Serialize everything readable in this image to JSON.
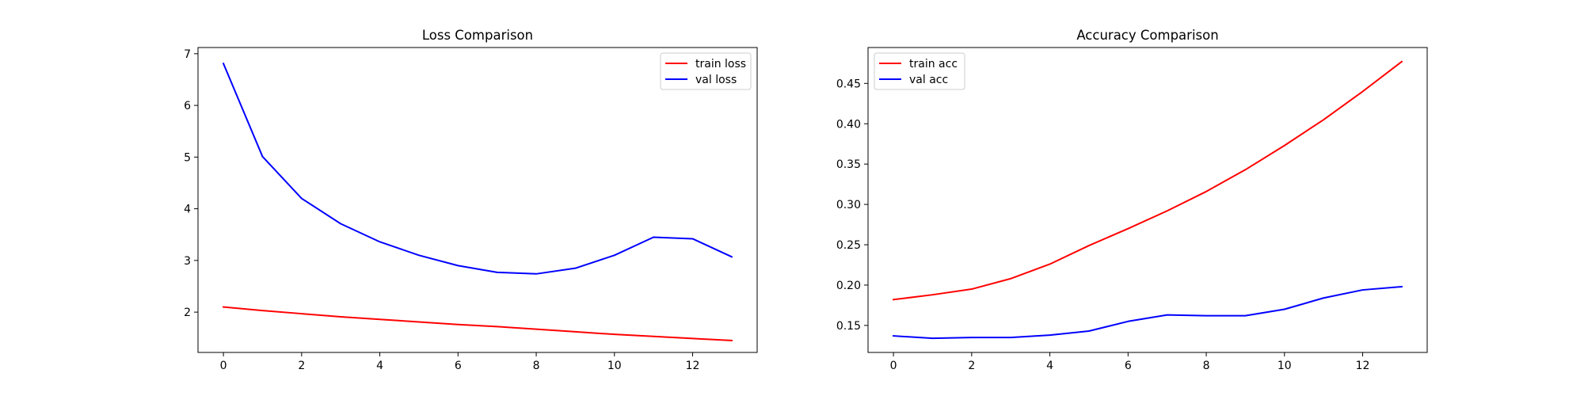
{
  "chart_data": [
    {
      "type": "line",
      "title": "Loss Comparison",
      "xlabel": "",
      "ylabel": "",
      "x": [
        0,
        1,
        2,
        3,
        4,
        5,
        6,
        7,
        8,
        9,
        10,
        11,
        12,
        13
      ],
      "xlim": [
        -0.65,
        13.65
      ],
      "ylim": [
        1.22,
        7.12
      ],
      "xticks": [
        0,
        2,
        4,
        6,
        8,
        10,
        12
      ],
      "yticks": [
        2,
        3,
        4,
        5,
        6,
        7
      ],
      "ytick_decimals": 0,
      "grid": false,
      "legend": "top-right",
      "series": [
        {
          "name": "train loss",
          "color": "#ff0000",
          "values": [
            2.1,
            2.03,
            1.97,
            1.91,
            1.86,
            1.81,
            1.76,
            1.72,
            1.67,
            1.62,
            1.57,
            1.53,
            1.49,
            1.45
          ]
        },
        {
          "name": "val loss",
          "color": "#0000ff",
          "values": [
            6.81,
            5.01,
            4.2,
            3.71,
            3.36,
            3.1,
            2.9,
            2.77,
            2.74,
            2.85,
            3.1,
            3.45,
            3.42,
            3.07
          ]
        }
      ]
    },
    {
      "type": "line",
      "title": "Accuracy Comparison",
      "xlabel": "",
      "ylabel": "",
      "x": [
        0,
        1,
        2,
        3,
        4,
        5,
        6,
        7,
        8,
        9,
        10,
        11,
        12,
        13
      ],
      "xlim": [
        -0.65,
        13.65
      ],
      "ylim": [
        0.1165,
        0.4945
      ],
      "xticks": [
        0,
        2,
        4,
        6,
        8,
        10,
        12
      ],
      "yticks": [
        0.15,
        0.2,
        0.25,
        0.3,
        0.35,
        0.4,
        0.45
      ],
      "ytick_decimals": 2,
      "grid": false,
      "legend": "top-left",
      "series": [
        {
          "name": "train acc",
          "color": "#ff0000",
          "values": [
            0.182,
            0.188,
            0.195,
            0.208,
            0.226,
            0.249,
            0.27,
            0.292,
            0.316,
            0.343,
            0.373,
            0.405,
            0.44,
            0.477
          ]
        },
        {
          "name": "val acc",
          "color": "#0000ff",
          "values": [
            0.137,
            0.134,
            0.135,
            0.135,
            0.138,
            0.143,
            0.155,
            0.163,
            0.162,
            0.162,
            0.17,
            0.184,
            0.194,
            0.198
          ]
        }
      ]
    }
  ]
}
